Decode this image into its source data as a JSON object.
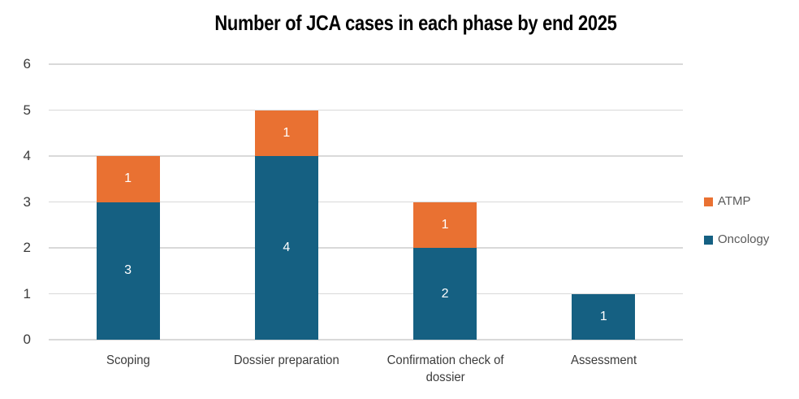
{
  "title": "Number of JCA cases in each phase by end 2025",
  "chart_data": {
    "type": "bar",
    "stacked": true,
    "title": "Number of JCA cases in each phase by end 2025",
    "categories": [
      "Scoping",
      "Dossier preparation",
      "Confirmation check of dossier",
      "Assessment"
    ],
    "series": [
      {
        "name": "Oncology",
        "color": "#156082",
        "values": [
          3,
          4,
          2,
          1
        ]
      },
      {
        "name": "ATMP",
        "color": "#E97132",
        "values": [
          1,
          1,
          1,
          0
        ]
      }
    ],
    "totals": [
      4,
      5,
      3,
      1
    ],
    "xlabel": "",
    "ylabel": "",
    "ylim": [
      0,
      6
    ],
    "yticks": [
      0,
      1,
      2,
      3,
      4,
      5,
      6
    ],
    "grid": true,
    "legend_position": "right",
    "legend": [
      {
        "label": "ATMP",
        "color": "#E97132"
      },
      {
        "label": "Oncology",
        "color": "#156082"
      }
    ],
    "colors": {
      "gridline": "#D9D9D9",
      "axis_text": "#3b3b3b",
      "legend_text": "#595959",
      "title_text": "#000000",
      "bar_label": "#FFFFFF"
    }
  }
}
